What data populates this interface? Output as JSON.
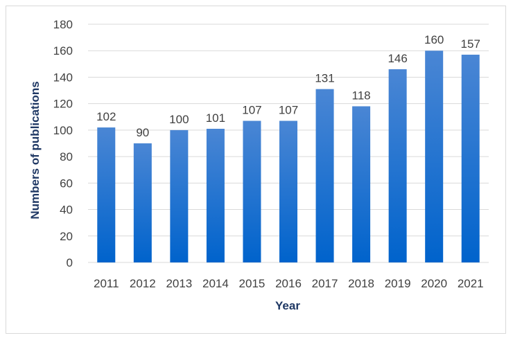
{
  "chart_data": {
    "type": "bar",
    "xlabel": "Year",
    "ylabel": "Numbers of publications",
    "categories": [
      "2011",
      "2012",
      "2013",
      "2014",
      "2015",
      "2016",
      "2017",
      "2018",
      "2019",
      "2020",
      "2021"
    ],
    "values": [
      102,
      90,
      100,
      101,
      107,
      107,
      131,
      118,
      146,
      160,
      157
    ],
    "ylim": [
      0,
      180
    ],
    "yticks": [
      0,
      20,
      40,
      60,
      80,
      100,
      120,
      140,
      160,
      180
    ],
    "grid": "horizontal",
    "legend": "none",
    "data_labels": true,
    "colors": {
      "bar_top": "#4a86d4",
      "bar_bottom": "#0063cc",
      "grid": "#d9d9d9",
      "text": "#404040",
      "axis_title": "#1f3864"
    }
  }
}
